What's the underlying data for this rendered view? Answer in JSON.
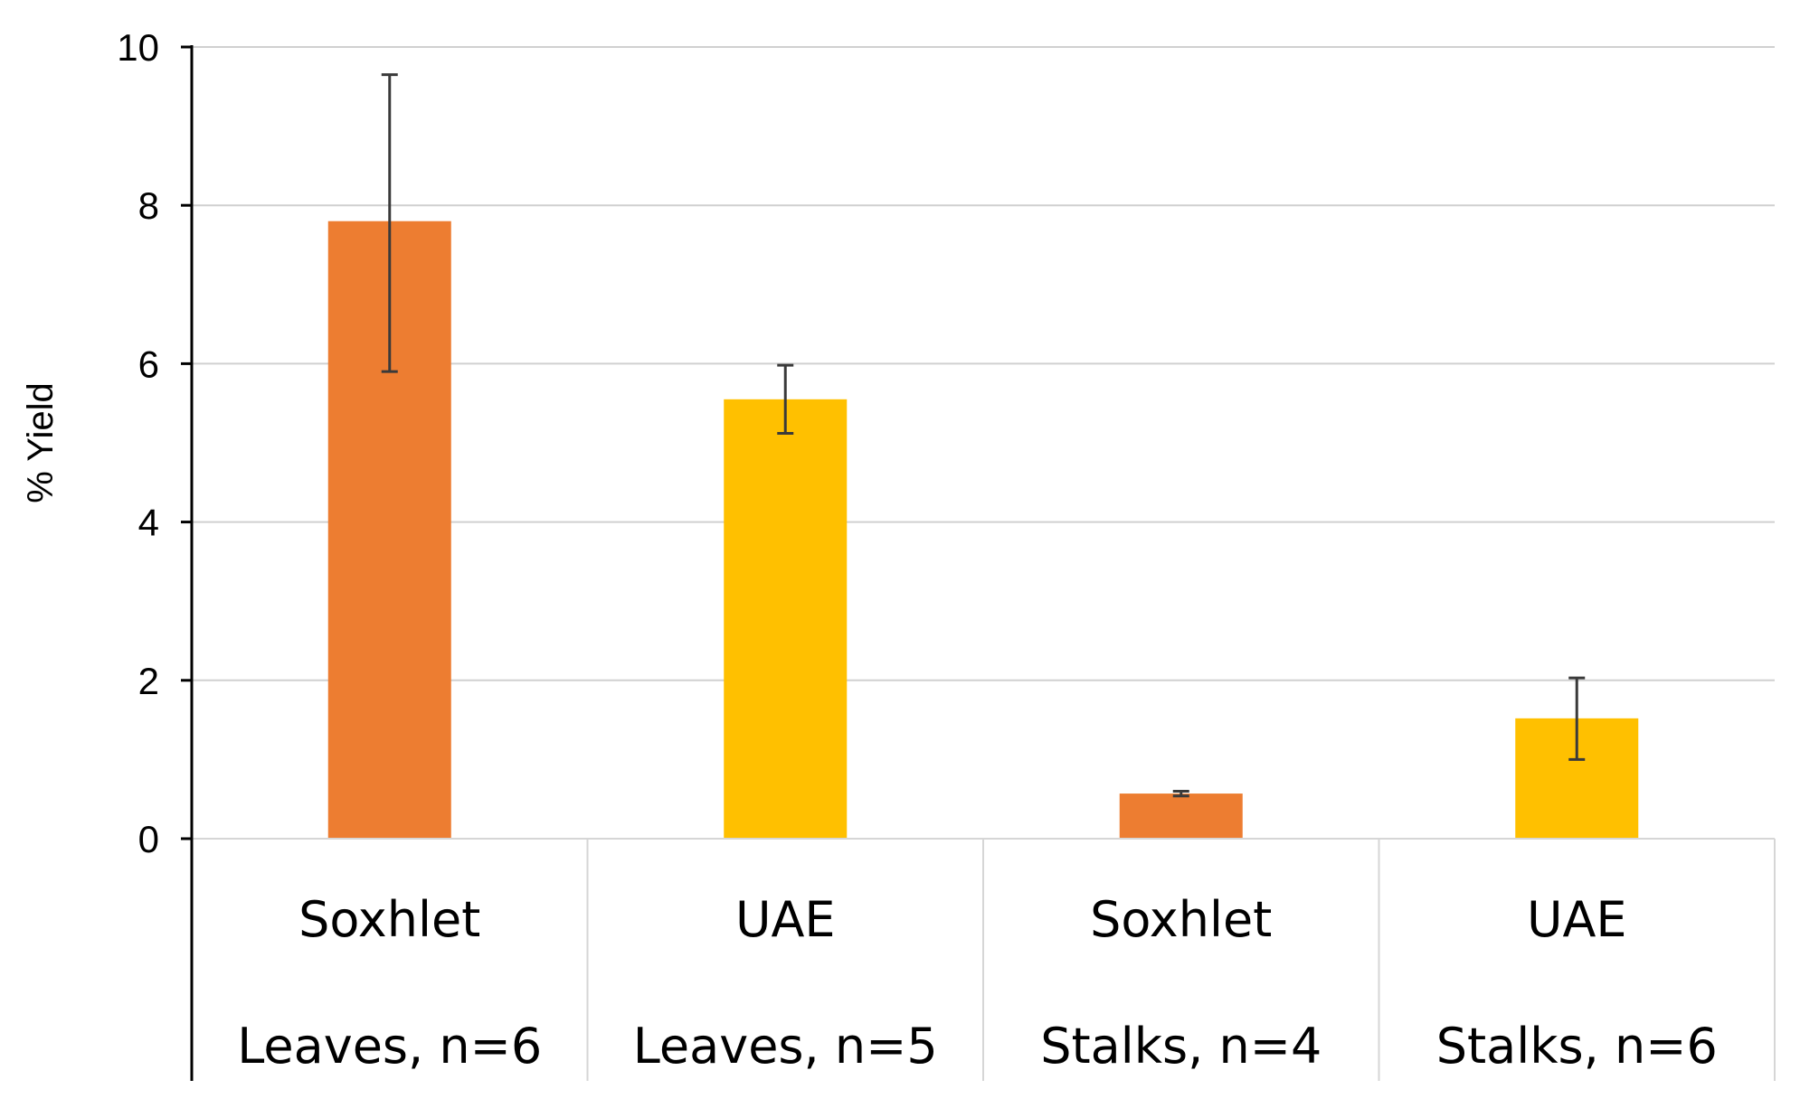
{
  "chart_data": {
    "type": "bar",
    "categories": [
      {
        "method": "Soxhlet",
        "group": "Leaves, n=6"
      },
      {
        "method": "UAE",
        "group": "Leaves, n=5"
      },
      {
        "method": "Soxhlet",
        "group": "Stalks, n=4"
      },
      {
        "method": "UAE",
        "group": "Stalks, n=6"
      }
    ],
    "values": [
      7.8,
      5.55,
      0.57,
      1.52
    ],
    "errors": [
      [
        5.9,
        9.65
      ],
      [
        5.12,
        5.98
      ],
      [
        0.54,
        0.6
      ],
      [
        1.0,
        2.03
      ]
    ],
    "colors": [
      "#ED7D31",
      "#FFC000",
      "#ED7D31",
      "#FFC000"
    ],
    "title": "",
    "xlabel": "",
    "ylabel": "% Yield",
    "ylim": [
      0,
      10
    ],
    "yticks": [
      0,
      2,
      4,
      6,
      8,
      10
    ],
    "grid": "horizontal",
    "legend": "none"
  }
}
